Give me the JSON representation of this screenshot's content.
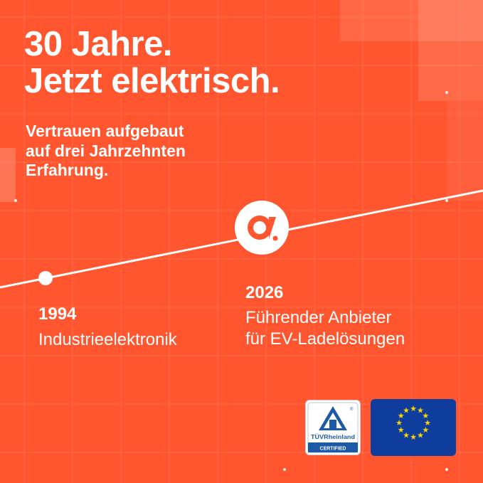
{
  "headline": {
    "line1": "30 Jahre.",
    "line2": "Jetzt elektrisch."
  },
  "subheadline": {
    "line1": "Vertrauen aufgebaut",
    "line2": "auf drei Jahrzehnten",
    "line3": "Erfahrung."
  },
  "timeline": {
    "start": {
      "year": "1994",
      "label": "Industrieelektronik"
    },
    "end": {
      "year": "2026",
      "line1": "Führender Anbieter",
      "line2": "für EV-Ladelösungen"
    }
  },
  "badges": {
    "tuv": {
      "brand": "TÜVRheinland",
      "status": "CERTIFIED",
      "registered_mark": "®"
    }
  },
  "colors": {
    "background": "#ff5630",
    "text": "#ffffff",
    "logo_mark": "#ff5630",
    "tuv_blue": "#1c5aa8",
    "eu_blue": "#0e3d9e",
    "eu_star": "#ffd500"
  },
  "icons": {
    "brand_logo": "stylized-a-logo-icon",
    "tuv_logo": "tuv-triangle-icon",
    "eu_flag": "eu-flag-icon"
  }
}
